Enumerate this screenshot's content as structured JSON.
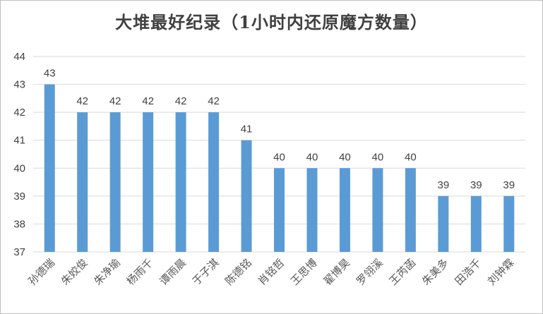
{
  "chart_data": {
    "type": "bar",
    "title": "大堆最好纪录（1小时内还原魔方数量）",
    "categories": [
      "孙德瑞",
      "朱姣俊",
      "朱净瑜",
      "杨雨千",
      "谭雨晨",
      "于子淇",
      "陈德铭",
      "肖铭哲",
      "王思博",
      "翟博昊",
      "罗翎溪",
      "王芮菡",
      "朱美多",
      "田浩千",
      "刘钟霖"
    ],
    "series": [
      {
        "values": [
          43,
          42,
          42,
          42,
          42,
          42,
          41,
          40,
          40,
          40,
          40,
          40,
          39,
          39,
          39
        ]
      }
    ],
    "ylim": [
      37,
      44
    ],
    "yticks": [
      37,
      38,
      39,
      40,
      41,
      42,
      43,
      44
    ],
    "grid": true,
    "bar_color": "#5b9bd5",
    "xlabel": "",
    "ylabel": ""
  }
}
